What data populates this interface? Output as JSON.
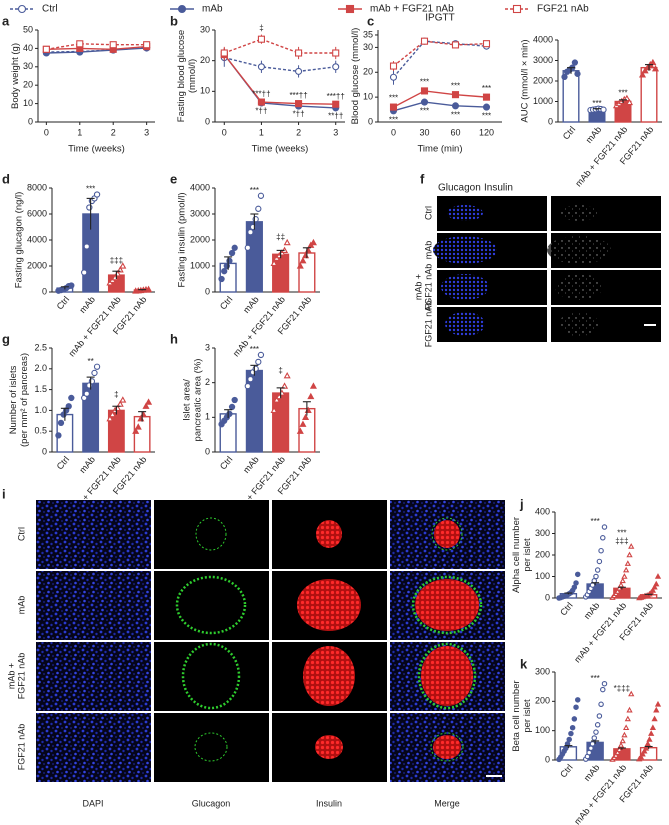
{
  "legend": [
    {
      "name": "Ctrl",
      "color": "#4a5b9a",
      "filled": false,
      "dashed": true,
      "marker": "circle"
    },
    {
      "name": "mAb",
      "color": "#4a5b9a",
      "filled": true,
      "dashed": false,
      "marker": "circle"
    },
    {
      "name": "mAb + FGF21 nAb",
      "color": "#d04545",
      "filled": true,
      "dashed": false,
      "marker": "square"
    },
    {
      "name": "FGF21 nAb",
      "color": "#d04545",
      "filled": false,
      "dashed": true,
      "marker": "square"
    }
  ],
  "chart_data": [
    {
      "type": "line",
      "label": "a",
      "ylabel": "Body weight (g)",
      "xlabel": "Time (weeks)",
      "x": [
        0,
        1,
        2,
        3
      ],
      "xlim": [
        -0.25,
        3.25
      ],
      "xticks": [
        0,
        1,
        2,
        3
      ],
      "ylim": [
        0,
        50
      ],
      "yticks": [
        0,
        10,
        20,
        30,
        40,
        50
      ],
      "series": [
        {
          "values": [
            38,
            38.3,
            39.2,
            40.5
          ],
          "errors": [
            1.5,
            1.5,
            1.5,
            1
          ]
        },
        {
          "values": [
            37.5,
            38,
            39.1,
            40.2
          ],
          "errors": [
            1.5,
            1.5,
            1.5,
            1
          ]
        },
        {
          "values": [
            39.5,
            40,
            39.5,
            41
          ],
          "errors": [
            1.5,
            1,
            1,
            1
          ]
        },
        {
          "values": [
            39.5,
            42.5,
            42,
            42
          ],
          "errors": [
            1.5,
            1,
            1,
            1
          ]
        }
      ]
    },
    {
      "type": "line",
      "label": "b",
      "ylabel": [
        "Fasting blood glucose",
        "(mmol/l)"
      ],
      "xlabel": "Time (weeks)",
      "x": [
        0,
        1,
        2,
        3
      ],
      "xlim": [
        -0.25,
        3.25
      ],
      "xticks": [
        0,
        1,
        2,
        3
      ],
      "ylim": [
        0,
        30
      ],
      "yticks": [
        0,
        10,
        20,
        30
      ],
      "series": [
        {
          "values": [
            21,
            18,
            16.5,
            18
          ],
          "errors": [
            3,
            2,
            2,
            2
          ]
        },
        {
          "values": [
            22,
            6.2,
            5.2,
            4.6
          ],
          "errors": [
            2,
            0.5,
            0.5,
            0.5
          ],
          "annotations": [
            null,
            "*††",
            "*††",
            "**††"
          ],
          "annotation_side": "below"
        },
        {
          "values": [
            22,
            6.5,
            6,
            5.8
          ],
          "errors": [
            2,
            0.5,
            0.5,
            0.5
          ],
          "annotations": [
            null,
            "***††",
            "***††",
            "***††"
          ],
          "annotation_side": "above"
        },
        {
          "values": [
            22.5,
            27,
            22.5,
            22.5
          ],
          "errors": [
            2,
            1.5,
            2,
            2
          ],
          "annotations": [
            null,
            "‡",
            null,
            null
          ],
          "annotation_side": "above"
        }
      ]
    },
    {
      "type": "line",
      "label": "c",
      "title": "IPGTT",
      "ylabel": "Blood glucose (mmol/l)",
      "xlabel": "Time (min)",
      "categories": [
        "0",
        "30",
        "60",
        "120"
      ],
      "ylim": [
        0,
        37
      ],
      "yticks": [
        0,
        10,
        20,
        30,
        35
      ],
      "series": [
        {
          "values": [
            18,
            32.5,
            31.5,
            30.5
          ],
          "errors": [
            3,
            1,
            1,
            1
          ]
        },
        {
          "values": [
            4.5,
            8,
            6.5,
            6
          ],
          "errors": [
            1,
            1,
            1,
            1
          ],
          "annotations": [
            "***",
            "***",
            "***",
            "***"
          ],
          "annotation_side": "below"
        },
        {
          "values": [
            6,
            12.5,
            11,
            10
          ],
          "errors": [
            1,
            1,
            1,
            1
          ],
          "annotations": [
            "***",
            "***",
            "***",
            "***"
          ],
          "annotation_side": "above"
        },
        {
          "values": [
            22.5,
            32.5,
            31,
            31.5
          ],
          "errors": [
            2,
            1,
            1,
            1
          ]
        }
      ]
    },
    {
      "type": "bar",
      "ylabel": "AUC (mmol/l × min)",
      "categories": [
        "Ctrl",
        "mAb",
        "mAb + FGF21 nAb",
        "FGF21 nAb"
      ],
      "ylim": [
        0,
        4000
      ],
      "yticks": [
        0,
        1000,
        2000,
        3000,
        4000
      ],
      "values": [
        2500,
        620,
        1000,
        2650
      ],
      "errors": [
        150,
        30,
        80,
        150
      ],
      "points": [
        [
          2200,
          2450,
          2550,
          2650,
          2900,
          2350
        ],
        [
          580,
          600,
          620,
          650,
          630,
          600
        ],
        [
          800,
          900,
          1000,
          1100,
          1150,
          950
        ],
        [
          2300,
          2500,
          2650,
          2800,
          2900,
          2600
        ]
      ],
      "annotations": [
        null,
        "***",
        "***",
        null
      ]
    },
    {
      "type": "bar",
      "label": "d",
      "ylabel": "Fasting glucagon (ng/l)",
      "categories": [
        "Ctrl",
        "mAb",
        "mAb + FGF21 nAb",
        "FGF21 nAb"
      ],
      "ylim": [
        0,
        8000
      ],
      "yticks": [
        0,
        2000,
        4000,
        6000,
        8000
      ],
      "values": [
        300,
        6000,
        1300,
        150
      ],
      "errors": [
        100,
        1200,
        300,
        30
      ],
      "points": [
        [
          100,
          150,
          200,
          300,
          450,
          500
        ],
        [
          1500,
          3500,
          6500,
          7000,
          7200,
          7500
        ],
        [
          700,
          900,
          1100,
          1400,
          1700,
          2000
        ],
        [
          80,
          100,
          120,
          150,
          180,
          200
        ]
      ],
      "annotations": [
        null,
        "***",
        "‡‡‡",
        null
      ]
    },
    {
      "type": "bar",
      "label": "e",
      "ylabel": "Fasting insulin (pmol/l)",
      "categories": [
        "Ctrl",
        "mAb",
        "mAb + FGF21 nAb",
        "FGF21 nAb"
      ],
      "ylim": [
        0,
        4000
      ],
      "yticks": [
        0,
        1000,
        2000,
        3000,
        4000
      ],
      "values": [
        1100,
        2700,
        1450,
        1500
      ],
      "errors": [
        250,
        300,
        150,
        200
      ],
      "points": [
        [
          500,
          800,
          1000,
          1200,
          1500,
          1700
        ],
        [
          1700,
          2300,
          2500,
          2800,
          3200,
          3700
        ],
        [
          1100,
          1300,
          1400,
          1500,
          1600,
          1900
        ],
        [
          1000,
          1200,
          1400,
          1600,
          1800,
          1900
        ]
      ],
      "annotations": [
        null,
        "***",
        "‡‡",
        null
      ]
    },
    {
      "type": "bar",
      "label": "g",
      "ylabel": [
        "Number of islets",
        "(per mm² of pancreas)"
      ],
      "categories": [
        "Ctrl",
        "mAb",
        "mAb + FGF21 nAb",
        "FGF21 nAb"
      ],
      "ylim": [
        0,
        2.5
      ],
      "yticks": [
        0,
        0.5,
        {
          "value": 1,
          "label": "1.0"
        },
        1.5,
        {
          "value": 2,
          "label": "2.0"
        },
        2.5
      ],
      "values": [
        0.9,
        1.65,
        1.0,
        0.85
      ],
      "errors": [
        0.15,
        0.15,
        0.1,
        0.12
      ],
      "points": [
        [
          0.4,
          0.7,
          0.9,
          1.0,
          1.1,
          1.3
        ],
        [
          1.3,
          1.4,
          1.6,
          1.7,
          1.9,
          2.05
        ],
        [
          0.8,
          0.9,
          1.0,
          1.05,
          1.15,
          1.25
        ],
        [
          0.5,
          0.6,
          0.8,
          0.9,
          1.1,
          1.2
        ]
      ],
      "annotations": [
        null,
        "**",
        "‡",
        null
      ]
    },
    {
      "type": "bar",
      "label": "h",
      "ylabel": [
        "Islet area/",
        "pancreatic area (%)"
      ],
      "categories": [
        "Ctrl",
        "mAb",
        "mAb + FGF21 nAb",
        "FGF21 nAb"
      ],
      "ylim": [
        0,
        3
      ],
      "yticks": [
        0,
        1,
        2,
        3
      ],
      "values": [
        1.1,
        2.35,
        1.7,
        1.25
      ],
      "errors": [
        0.12,
        0.15,
        0.15,
        0.2
      ],
      "points": [
        [
          0.8,
          0.9,
          1.0,
          1.1,
          1.3,
          1.5
        ],
        [
          1.9,
          2.1,
          2.3,
          2.4,
          2.6,
          2.8
        ],
        [
          1.2,
          1.5,
          1.6,
          1.7,
          1.9,
          2.2
        ],
        [
          0.6,
          0.8,
          1.0,
          1.2,
          1.6,
          1.9
        ]
      ],
      "annotations": [
        null,
        "***",
        "‡",
        null
      ]
    },
    {
      "type": "bar",
      "label": "j",
      "ylabel": [
        "Alpha cell number",
        "per islet"
      ],
      "categories": [
        "Ctrl",
        "mAb",
        "mAb + FGF21 nAb",
        "FGF21 nAb"
      ],
      "ylim": [
        0,
        400
      ],
      "yticks": [
        0,
        100,
        200,
        300,
        400
      ],
      "values": [
        20,
        65,
        45,
        15
      ],
      "errors": [
        3,
        6,
        5,
        2
      ],
      "points": [
        [
          0,
          2,
          5,
          8,
          10,
          15,
          20,
          25,
          35,
          50,
          70,
          110
        ],
        [
          5,
          15,
          30,
          45,
          60,
          80,
          100,
          130,
          170,
          220,
          280,
          330
        ],
        [
          2,
          10,
          20,
          30,
          45,
          60,
          80,
          100,
          130,
          160,
          200,
          240
        ],
        [
          0,
          2,
          5,
          8,
          10,
          12,
          18,
          25,
          35,
          50,
          65,
          100
        ]
      ],
      "annotations": [
        null,
        "***",
        [
          "***",
          "‡‡‡"
        ],
        null
      ]
    },
    {
      "type": "bar",
      "label": "k",
      "ylabel": [
        "Beta cell number",
        "per islet"
      ],
      "categories": [
        "Ctrl",
        "mAb",
        "mAb + FGF21 nAb",
        "FGF21 nAb"
      ],
      "ylim": [
        0,
        300
      ],
      "yticks": [
        0,
        100,
        200,
        300
      ],
      "values": [
        45,
        60,
        38,
        42
      ],
      "errors": [
        4,
        5,
        3,
        4
      ],
      "points": [
        [
          2,
          10,
          20,
          30,
          40,
          55,
          70,
          90,
          110,
          140,
          180,
          205
        ],
        [
          3,
          12,
          25,
          40,
          55,
          75,
          95,
          120,
          150,
          190,
          240,
          260
        ],
        [
          2,
          8,
          15,
          25,
          35,
          50,
          65,
          85,
          110,
          140,
          170,
          225
        ],
        [
          3,
          10,
          20,
          30,
          40,
          55,
          70,
          90,
          110,
          140,
          170,
          190
        ]
      ],
      "annotations": [
        null,
        "***",
        "*‡‡‡",
        null
      ]
    }
  ],
  "image_panels": [
    {
      "label": "f",
      "channels": [
        "Glucagon",
        "Insulin"
      ],
      "channel_colors": [
        "#22cc22",
        "#ee2222"
      ],
      "rows": [
        "Ctrl",
        "mAb",
        [
          "mAb +",
          "FGF21 nAb"
        ],
        "FGF21 nAb"
      ]
    },
    {
      "label": "i",
      "rows": [
        "Ctrl",
        "mAb",
        [
          "mAb +",
          "FGF21 nAb"
        ],
        "FGF21 nAb"
      ],
      "columns": [
        "DAPI",
        "Glucagon",
        "Insulin",
        "Merge"
      ]
    }
  ]
}
